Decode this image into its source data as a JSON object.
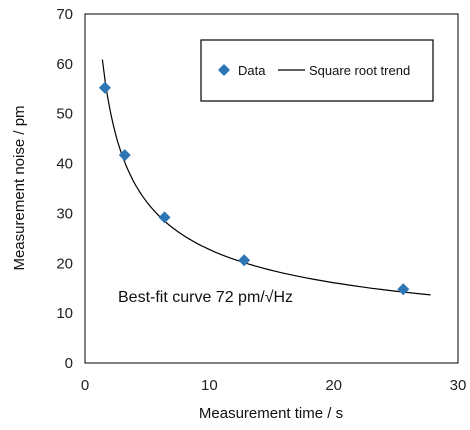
{
  "chart_data": {
    "type": "scatter",
    "xlabel": "Measurement time / s",
    "ylabel": "Measurement noise / pm",
    "xlim": [
      0,
      30
    ],
    "ylim": [
      0,
      70
    ],
    "x_ticks": [
      0,
      10,
      20,
      30
    ],
    "y_ticks": [
      0,
      10,
      20,
      30,
      40,
      50,
      60,
      70
    ],
    "grid": false,
    "legend_position": "top-right",
    "series": [
      {
        "name": "Data",
        "kind": "markers",
        "marker": "diamond",
        "color": "#2E75B6",
        "x": [
          1.6,
          3.2,
          6.4,
          12.8,
          25.6
        ],
        "y": [
          55.2,
          41.7,
          29.2,
          20.6,
          14.8
        ]
      },
      {
        "name": "Square root trend",
        "kind": "line",
        "color": "#000000",
        "coefficient": 72,
        "x_range": [
          1.4,
          27.8
        ]
      }
    ],
    "annotation": "Best-fit curve 72 pm/√Hz"
  }
}
